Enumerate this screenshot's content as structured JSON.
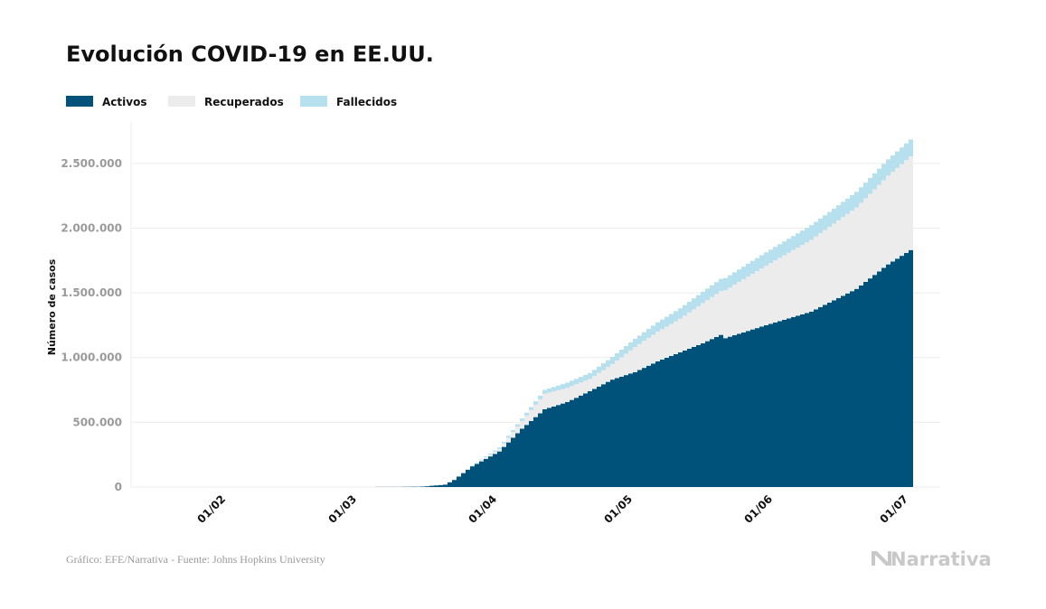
{
  "chart_data": {
    "type": "area",
    "stacked": true,
    "step": true,
    "title": "Evolución COVID-19 en EE.UU.",
    "xlabel": "",
    "ylabel": "Número de casos",
    "xlim": [
      "2020-01-11",
      "2020-07-08"
    ],
    "ylim": [
      0,
      2750000
    ],
    "grid": true,
    "legend_placement": "top-left",
    "yticks": [
      0,
      500000,
      1000000,
      1500000,
      2000000,
      2500000
    ],
    "ytick_labels": [
      "0",
      "500.000",
      "1.000.000",
      "1.500.000",
      "2.000.000",
      "2.500.000"
    ],
    "xticks": [
      "2020-02-01",
      "2020-03-01",
      "2020-04-01",
      "2020-05-01",
      "2020-06-01",
      "2020-07-01"
    ],
    "xtick_labels": [
      "01/02",
      "01/03",
      "01/04",
      "01/05",
      "01/06",
      "01/07"
    ],
    "dates": [
      "2020-03-01",
      "2020-03-10",
      "2020-03-15",
      "2020-03-20",
      "2020-03-22",
      "2020-03-26",
      "2020-04-01",
      "2020-04-06",
      "2020-04-11",
      "2020-04-16",
      "2020-04-21",
      "2020-04-26",
      "2020-05-01",
      "2020-05-06",
      "2020-05-11",
      "2020-05-16",
      "2020-05-20",
      "2020-05-21",
      "2020-05-30",
      "2020-06-09",
      "2020-06-19",
      "2020-06-26",
      "2020-07-01"
    ],
    "series": [
      {
        "name": "Activos",
        "color": "#00527a",
        "values": [
          30,
          1000,
          3500,
          18000,
          55000,
          160000,
          275000,
          450000,
          600000,
          656000,
          740000,
          830000,
          887000,
          970000,
          1040000,
          1110000,
          1175000,
          1150000,
          1250000,
          1355000,
          1530000,
          1720000,
          1830000
        ]
      },
      {
        "name": "Recuperados",
        "color": "#ececec",
        "values": [
          10,
          10,
          50,
          150,
          1500,
          4000,
          20000,
          60000,
          120000,
          110000,
          95000,
          120000,
          195000,
          230000,
          260000,
          310000,
          340000,
          370000,
          460000,
          555000,
          630000,
          685000,
          725000
        ]
      },
      {
        "name": "Fallecidos",
        "color": "#b7e0ef",
        "values": [
          1,
          30,
          60,
          250,
          1000,
          3000,
          10000,
          20000,
          30000,
          40000,
          45000,
          55000,
          63000,
          72000,
          80000,
          88000,
          93000,
          94000,
          103000,
          112000,
          120000,
          126000,
          130000
        ]
      }
    ]
  },
  "footer": {
    "source": "Gráfico: EFE/Narrativa - Fuente: Johns Hopkins University",
    "logo_text": "Narrativa"
  }
}
